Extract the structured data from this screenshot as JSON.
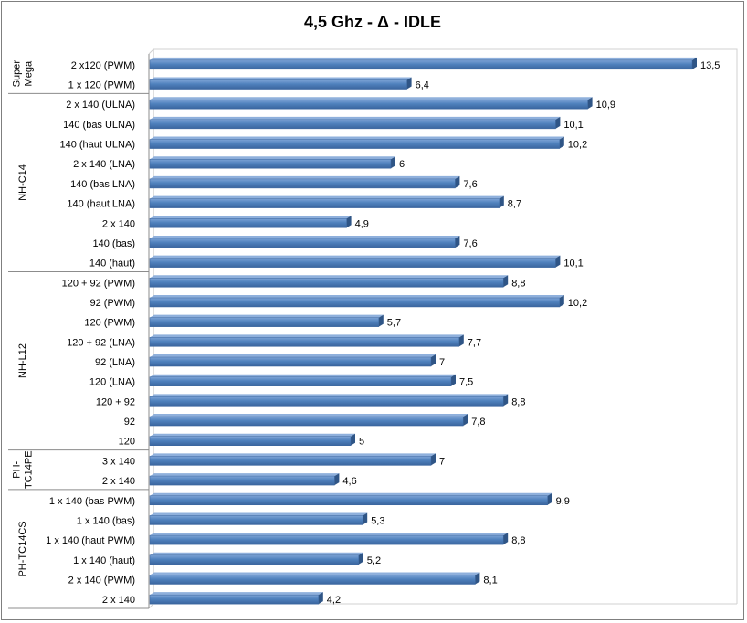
{
  "chart_data": {
    "type": "bar",
    "orientation": "horizontal",
    "title": "4,5 Ghz - Δ - IDLE",
    "xlim": [
      0,
      14
    ],
    "grid": false,
    "legend": "none",
    "bar_color": "#4F81BD",
    "categories": [
      "2 x120 (PWM)",
      "1 x 120 (PWM)",
      "2 x 140 (ULNA)",
      "140 (bas ULNA)",
      "140 (haut ULNA)",
      "2 x 140 (LNA)",
      "140 (bas LNA)",
      "140 (haut LNA)",
      "2 x 140",
      "140 (bas)",
      "140 (haut)",
      "120 + 92 (PWM)",
      "92 (PWM)",
      "120 (PWM)",
      "120 + 92 (LNA)",
      "92 (LNA)",
      "120 (LNA)",
      "120 + 92",
      "92",
      "120",
      "3 x 140",
      "2 x 140",
      "1 x 140 (bas PWM)",
      "1 x 140 (bas)",
      "1 x 140 (haut PWM)",
      "1 x 140 (haut)",
      "2 x 140 (PWM)",
      "2 x 140"
    ],
    "values": [
      13.5,
      6.4,
      10.9,
      10.1,
      10.2,
      6,
      7.6,
      8.7,
      4.9,
      7.6,
      10.1,
      8.8,
      10.2,
      5.7,
      7.7,
      7,
      7.5,
      8.8,
      7.8,
      5,
      7,
      4.6,
      9.9,
      5.3,
      8.8,
      5.2,
      8.1,
      4.2
    ],
    "value_labels": [
      "13,5",
      "6,4",
      "10,9",
      "10,1",
      "10,2",
      "6",
      "7,6",
      "8,7",
      "4,9",
      "7,6",
      "10,1",
      "8,8",
      "10,2",
      "5,7",
      "7,7",
      "7",
      "7,5",
      "8,8",
      "7,8",
      "5",
      "7",
      "4,6",
      "9,9",
      "5,3",
      "8,8",
      "5,2",
      "8,1",
      "4,2"
    ],
    "groups": [
      {
        "name": "Super Mega",
        "lines": [
          "Super",
          "Mega"
        ],
        "start": 0,
        "count": 2
      },
      {
        "name": "NH-C14",
        "lines": [
          "NH-C14"
        ],
        "start": 2,
        "count": 9
      },
      {
        "name": "NH-L12",
        "lines": [
          "NH-L12"
        ],
        "start": 11,
        "count": 9
      },
      {
        "name": "PH-TC14PE",
        "lines": [
          "PH-",
          "TC14PE"
        ],
        "start": 20,
        "count": 2
      },
      {
        "name": "PH-TC14CS",
        "lines": [
          "PH-TC14CS"
        ],
        "start": 22,
        "count": 6
      }
    ]
  }
}
